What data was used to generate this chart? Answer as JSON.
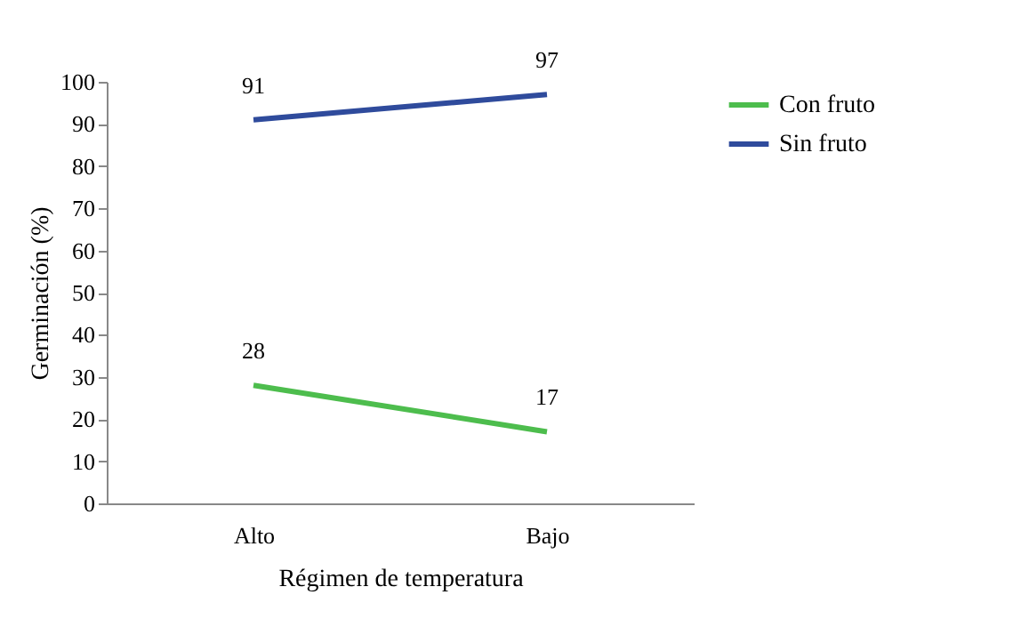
{
  "chart_data": {
    "type": "line",
    "xlabel": "Régimen de temperatura",
    "ylabel": "Germinación (%)",
    "categories": [
      "Alto",
      "Bajo"
    ],
    "series": [
      {
        "name": "Con fruto",
        "color": "#4dbd4d",
        "values": [
          28,
          17
        ]
      },
      {
        "name": "Sin fruto",
        "color": "#2f4b9c",
        "values": [
          91,
          97
        ]
      }
    ],
    "ylim": [
      0,
      100
    ],
    "yticks": [
      0,
      10,
      20,
      30,
      40,
      50,
      60,
      70,
      80,
      90,
      100
    ],
    "data_labels": true,
    "grid": false,
    "legend": "right",
    "marker": "none",
    "line_style": "solid"
  }
}
